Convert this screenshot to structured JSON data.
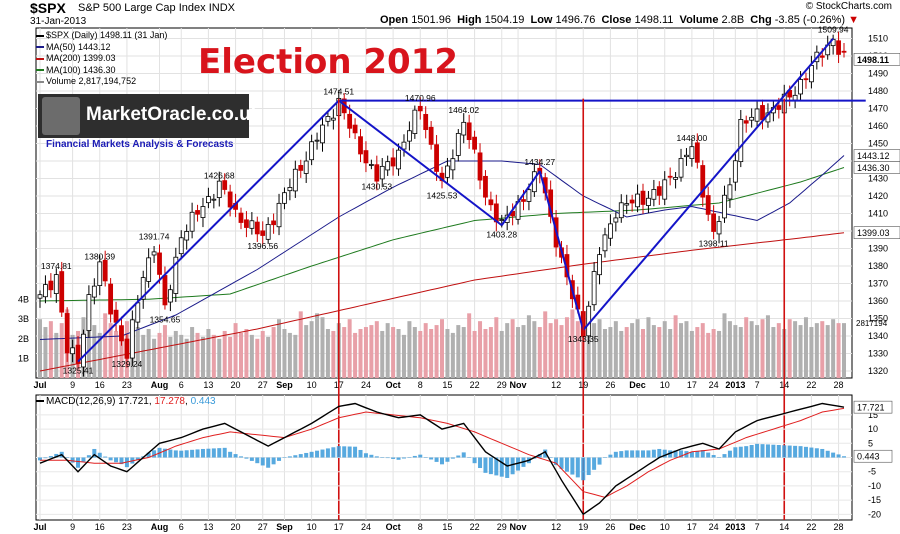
{
  "header": {
    "symbol": "$SPX",
    "description": "S&P 500 Large Cap Index",
    "exchange": "INDX",
    "date": "31-Jan-2013",
    "ohlc": {
      "open": "1501.96",
      "high": "1504.19",
      "low": "1496.76",
      "close": "1498.11",
      "volume": "2.8B",
      "chg": "-3.85 (-0.26%)"
    },
    "credit": "© StockCharts.com"
  },
  "legend": [
    {
      "text": "$SPX (Daily) 1498.11 (31 Jan)",
      "color": "#000000"
    },
    {
      "text": "MA(50) 1443.12",
      "color": "#1a1a8a"
    },
    {
      "text": "MA(200) 1399.03",
      "color": "#c01010"
    },
    {
      "text": "MA(100) 1436.30",
      "color": "#1e7a1e"
    },
    {
      "text": "Volume 2,817,194,752",
      "color": "#888888"
    }
  ],
  "title": "Election 2012",
  "logo": {
    "name": "MarketOracle.co.uk",
    "tagline": "Financial Markets Analysis & Forecasts"
  },
  "colors": {
    "up": "#000000",
    "down": "#cc0000",
    "ma50": "#1a1a8a",
    "ma200": "#c01010",
    "ma100": "#1e7a1e",
    "trend": "#1414c8",
    "vline": "#d01010",
    "vol_up": "#b0b0b0",
    "vol_down": "#e8a0a8",
    "macd_line": "#000000",
    "signal": "#e02020",
    "hist": "#3a9ad9"
  },
  "chart_data": [
    {
      "type": "candlestick",
      "title": "$SPX (Daily)",
      "ylim": [
        1316,
        1516
      ],
      "y_ticks": [
        1320,
        1330,
        1340,
        1350,
        1360,
        1370,
        1380,
        1390,
        1400,
        1410,
        1420,
        1430,
        1440,
        1450,
        1460,
        1470,
        1480,
        1490,
        1500,
        1510
      ],
      "x_ticks": [
        "Jul",
        "9",
        "16",
        "23",
        "Aug",
        "6",
        "13",
        "20",
        "27",
        "Sep",
        "10",
        "17",
        "24",
        "Oct",
        "8",
        "15",
        "22",
        "29",
        "Nov",
        "12",
        "19",
        "26",
        "Dec",
        "10",
        "17",
        "24",
        "2013",
        "7",
        "14",
        "22",
        "28"
      ],
      "x_tick_days": [
        0,
        6,
        11,
        16,
        22,
        26,
        31,
        36,
        41,
        45,
        50,
        55,
        60,
        65,
        70,
        75,
        80,
        85,
        88,
        95,
        100,
        105,
        110,
        115,
        120,
        124,
        128,
        132,
        137,
        142,
        147
      ],
      "anchors": [
        [
          0,
          1362
        ],
        [
          3,
          1374.81
        ],
        [
          5,
          1332
        ],
        [
          7,
          1325.41
        ],
        [
          9,
          1362
        ],
        [
          11,
          1380.39
        ],
        [
          13,
          1356
        ],
        [
          16,
          1329.24
        ],
        [
          19,
          1375
        ],
        [
          21,
          1391.74
        ],
        [
          23,
          1354.65
        ],
        [
          26,
          1398
        ],
        [
          33,
          1426.68
        ],
        [
          36,
          1410
        ],
        [
          41,
          1396.56
        ],
        [
          47,
          1432
        ],
        [
          55,
          1474.51
        ],
        [
          58,
          1452
        ],
        [
          62,
          1430.53
        ],
        [
          66,
          1445
        ],
        [
          70,
          1470.96
        ],
        [
          74,
          1425.53
        ],
        [
          78,
          1464.02
        ],
        [
          82,
          1420
        ],
        [
          85,
          1403.28
        ],
        [
          88,
          1415
        ],
        [
          92,
          1434.27
        ],
        [
          96,
          1382
        ],
        [
          100,
          1343.35
        ],
        [
          103,
          1388
        ],
        [
          106,
          1412
        ],
        [
          110,
          1418
        ],
        [
          114,
          1422
        ],
        [
          120,
          1448
        ],
        [
          124,
          1398.11
        ],
        [
          127,
          1426
        ],
        [
          129,
          1462
        ],
        [
          134,
          1468
        ],
        [
          138,
          1476
        ],
        [
          142,
          1494
        ],
        [
          146,
          1509.94
        ],
        [
          148,
          1498.11
        ]
      ],
      "annotations": [
        {
          "day": 3,
          "value": 1374.81,
          "label": "1374.81",
          "pos": "above"
        },
        {
          "day": 7,
          "value": 1325.41,
          "label": "1325.41",
          "pos": "below"
        },
        {
          "day": 11,
          "value": 1380.39,
          "label": "1380.39",
          "pos": "above"
        },
        {
          "day": 16,
          "value": 1329.24,
          "label": "1329.24",
          "pos": "below"
        },
        {
          "day": 21,
          "value": 1391.74,
          "label": "1391.74",
          "pos": "above"
        },
        {
          "day": 23,
          "value": 1354.65,
          "label": "1354.65",
          "pos": "below"
        },
        {
          "day": 33,
          "value": 1426.68,
          "label": "1426.68",
          "pos": "above"
        },
        {
          "day": 41,
          "value": 1396.56,
          "label": "1396.56",
          "pos": "below"
        },
        {
          "day": 55,
          "value": 1474.51,
          "label": "1474.51",
          "pos": "above"
        },
        {
          "day": 62,
          "value": 1430.53,
          "label": "1430.53",
          "pos": "below"
        },
        {
          "day": 70,
          "value": 1470.96,
          "label": "1470.96",
          "pos": "above"
        },
        {
          "day": 74,
          "value": 1425.53,
          "label": "1425.53",
          "pos": "below"
        },
        {
          "day": 78,
          "value": 1464.02,
          "label": "1464.02",
          "pos": "above"
        },
        {
          "day": 85,
          "value": 1403.28,
          "label": "1403.28",
          "pos": "below"
        },
        {
          "day": 92,
          "value": 1434.27,
          "label": "1434.27",
          "pos": "above"
        },
        {
          "day": 100,
          "value": 1343.35,
          "label": "1343.35",
          "pos": "below"
        },
        {
          "day": 120,
          "value": 1448.0,
          "label": "1448.00",
          "pos": "above"
        },
        {
          "day": 124,
          "value": 1398.11,
          "label": "1398.11",
          "pos": "below"
        },
        {
          "day": 146,
          "value": 1509.94,
          "label": "1509.94",
          "pos": "above"
        }
      ],
      "ma50": [
        [
          0,
          1338
        ],
        [
          15,
          1340
        ],
        [
          25,
          1352
        ],
        [
          40,
          1378
        ],
        [
          55,
          1408
        ],
        [
          65,
          1425
        ],
        [
          75,
          1440
        ],
        [
          85,
          1440
        ],
        [
          92,
          1438
        ],
        [
          100,
          1420
        ],
        [
          108,
          1408
        ],
        [
          115,
          1412
        ],
        [
          120,
          1414
        ],
        [
          126,
          1410
        ],
        [
          132,
          1406
        ],
        [
          138,
          1416
        ],
        [
          144,
          1432
        ],
        [
          148,
          1443.12
        ]
      ],
      "ma100": [
        [
          0,
          1360
        ],
        [
          20,
          1361
        ],
        [
          35,
          1364
        ],
        [
          50,
          1380
        ],
        [
          65,
          1395
        ],
        [
          80,
          1406
        ],
        [
          95,
          1410
        ],
        [
          110,
          1412
        ],
        [
          125,
          1416
        ],
        [
          140,
          1428
        ],
        [
          148,
          1436.3
        ]
      ],
      "ma200": [
        [
          0,
          1320
        ],
        [
          20,
          1332
        ],
        [
          40,
          1344
        ],
        [
          60,
          1358
        ],
        [
          80,
          1372
        ],
        [
          100,
          1381
        ],
        [
          120,
          1389
        ],
        [
          140,
          1396
        ],
        [
          148,
          1399.03
        ]
      ],
      "trend_lines": [
        {
          "from": [
            7,
            1325.41
          ],
          "to": [
            55,
            1474.51
          ]
        },
        {
          "from": [
            55,
            1474.51
          ],
          "to": [
            85,
            1403.28
          ]
        },
        {
          "from": [
            85,
            1403.28
          ],
          "to": [
            92,
            1434.27
          ]
        },
        {
          "from": [
            92,
            1434.27
          ],
          "to": [
            100,
            1343.35
          ]
        },
        {
          "from": [
            100,
            1343.35
          ],
          "to": [
            146,
            1509.94
          ]
        },
        {
          "from": [
            55,
            1474.51
          ],
          "to": [
            152,
            1474.51
          ]
        }
      ],
      "vertical_markers_days": [
        55,
        100,
        137
      ],
      "price_tags": [
        {
          "value": 1498.11,
          "label": "1498.11",
          "bold": true
        },
        {
          "value": 1443.12,
          "label": "1443.12",
          "bold": false
        },
        {
          "value": 1436.3,
          "label": "1436.30",
          "bold": false
        },
        {
          "value": 1399.03,
          "label": "1399.03",
          "bold": false
        }
      ]
    },
    {
      "type": "bar",
      "title": "Volume",
      "ylim": [
        0,
        5
      ],
      "y_ticks": [
        {
          "value": 1,
          "label": "1B"
        },
        {
          "value": 2,
          "label": "2B"
        },
        {
          "value": 3,
          "label": "3B"
        },
        {
          "value": 4,
          "label": "4B"
        }
      ],
      "last_value_label": "2817194",
      "values_billion": [
        3.0,
        2.6,
        2.9,
        2.3,
        2.8,
        3.5,
        2.2,
        2.4,
        3.1,
        2.5,
        2.7,
        2.3,
        3.3,
        2.8,
        2.4,
        2.1,
        2.9,
        3.0,
        2.6,
        2.2,
        2.5,
        2.0,
        2.3,
        2.7,
        2.1,
        2.4,
        2.2,
        2.0,
        2.6,
        2.3,
        2.1,
        2.5,
        2.2,
        2.0,
        2.4,
        2.1,
        2.8,
        2.3,
        2.5,
        2.2,
        2.0,
        2.4,
        2.1,
        2.6,
        3.0,
        2.5,
        2.3,
        2.2,
        3.4,
        2.7,
        2.9,
        3.3,
        3.1,
        2.5,
        2.4,
        2.8,
        2.6,
        3.0,
        2.3,
        2.5,
        2.6,
        2.7,
        2.9,
        2.4,
        2.8,
        2.6,
        2.5,
        2.2,
        2.9,
        2.6,
        2.4,
        2.8,
        2.5,
        2.7,
        3.0,
        2.5,
        2.3,
        2.7,
        2.6,
        3.3,
        2.4,
        2.9,
        2.5,
        2.6,
        3.1,
        2.4,
        2.8,
        3.0,
        2.6,
        2.7,
        3.2,
        2.9,
        2.6,
        3.4,
        2.8,
        3.0,
        2.7,
        3.1,
        3.5,
        2.9,
        3.2,
        2.7,
        2.8,
        3.0,
        2.5,
        2.6,
        2.9,
        2.4,
        2.6,
        2.8,
        3.0,
        2.5,
        3.1,
        2.7,
        2.6,
        2.9,
        2.5,
        3.2,
        2.8,
        2.9,
        2.4,
        2.6,
        2.8,
        2.3,
        2.5,
        2.4,
        3.3,
        2.9,
        2.7,
        2.6,
        3.1,
        2.9,
        2.7,
        3.0,
        3.2,
        2.6,
        2.8,
        2.5,
        3.0,
        2.9,
        2.7,
        3.1,
        2.6,
        2.8,
        2.9,
        2.7,
        3.0,
        2.8,
        2.8
      ]
    },
    {
      "type": "line",
      "title": "MACD(12,26,9)",
      "macd_value": "17.721",
      "signal_value": "17.278",
      "hist_value": "0.443",
      "ylim": [
        -22,
        22
      ],
      "y_ticks": [
        -20,
        -15,
        -10,
        -5,
        0,
        5,
        10,
        15
      ],
      "macd": [
        [
          0,
          -2
        ],
        [
          4,
          1
        ],
        [
          7,
          -5
        ],
        [
          10,
          1
        ],
        [
          13,
          -3
        ],
        [
          16,
          -5
        ],
        [
          19,
          0
        ],
        [
          22,
          5
        ],
        [
          26,
          7
        ],
        [
          30,
          10
        ],
        [
          34,
          12
        ],
        [
          38,
          8
        ],
        [
          42,
          4
        ],
        [
          46,
          8
        ],
        [
          50,
          12
        ],
        [
          55,
          18
        ],
        [
          58,
          19
        ],
        [
          62,
          16
        ],
        [
          66,
          14
        ],
        [
          70,
          15
        ],
        [
          74,
          10
        ],
        [
          78,
          12
        ],
        [
          82,
          2
        ],
        [
          86,
          -3
        ],
        [
          90,
          -1
        ],
        [
          93,
          2
        ],
        [
          96,
          -8
        ],
        [
          100,
          -20
        ],
        [
          103,
          -16
        ],
        [
          106,
          -10
        ],
        [
          110,
          -5
        ],
        [
          114,
          0
        ],
        [
          118,
          3
        ],
        [
          122,
          5
        ],
        [
          125,
          3
        ],
        [
          128,
          9
        ],
        [
          132,
          13
        ],
        [
          136,
          15
        ],
        [
          140,
          17
        ],
        [
          144,
          19
        ],
        [
          148,
          17.721
        ]
      ],
      "signal": [
        [
          0,
          -1
        ],
        [
          5,
          -1
        ],
        [
          10,
          -2
        ],
        [
          15,
          -2
        ],
        [
          20,
          0
        ],
        [
          25,
          4
        ],
        [
          30,
          7
        ],
        [
          35,
          9
        ],
        [
          40,
          8
        ],
        [
          45,
          7
        ],
        [
          50,
          10
        ],
        [
          55,
          14
        ],
        [
          60,
          16
        ],
        [
          65,
          15
        ],
        [
          70,
          14
        ],
        [
          75,
          12
        ],
        [
          80,
          9
        ],
        [
          85,
          5
        ],
        [
          90,
          1
        ],
        [
          95,
          -2
        ],
        [
          100,
          -12
        ],
        [
          104,
          -14
        ],
        [
          108,
          -10
        ],
        [
          112,
          -5
        ],
        [
          116,
          -1
        ],
        [
          120,
          2
        ],
        [
          125,
          3
        ],
        [
          130,
          7
        ],
        [
          135,
          10
        ],
        [
          140,
          13
        ],
        [
          144,
          16
        ],
        [
          148,
          17.278
        ]
      ],
      "x_ticks": [
        "Jul",
        "9",
        "16",
        "23",
        "Aug",
        "6",
        "13",
        "20",
        "27",
        "Sep",
        "10",
        "17",
        "24",
        "Oct",
        "8",
        "15",
        "22",
        "29",
        "Nov",
        "12",
        "19",
        "26",
        "Dec",
        "10",
        "17",
        "24",
        "2013",
        "7",
        "14",
        "22",
        "28"
      ]
    }
  ]
}
